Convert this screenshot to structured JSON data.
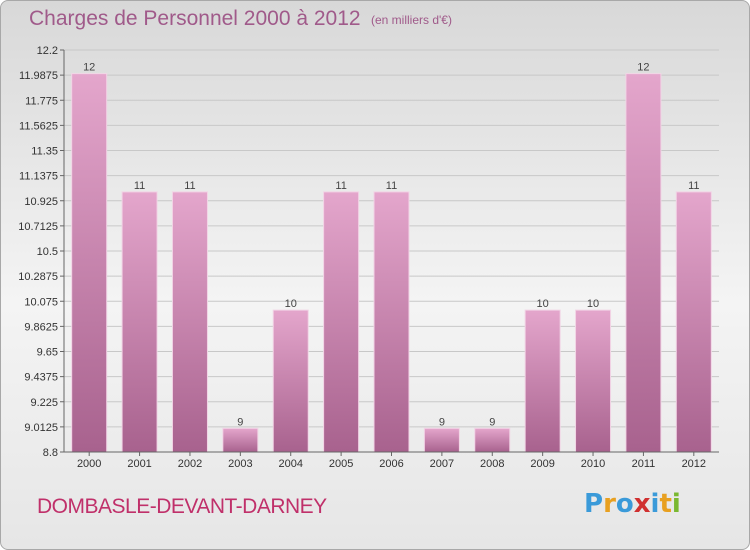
{
  "header": {
    "title": "Charges de Personnel 2000 à 2012",
    "unit": "(en milliers d'€)"
  },
  "footer": {
    "commune": "DOMBASLE-DEVANT-DARNEY",
    "logo_text": "Proxiti",
    "logo_letters": [
      {
        "ch": "P",
        "color": "#3a9ad9"
      },
      {
        "ch": "r",
        "color": "#e8a020"
      },
      {
        "ch": "o",
        "color": "#3a9ad9"
      },
      {
        "ch": "x",
        "color": "#d03030"
      },
      {
        "ch": "i",
        "color": "#3a9ad9"
      },
      {
        "ch": "t",
        "color": "#e8a020"
      },
      {
        "ch": "i",
        "color": "#7ab830"
      }
    ]
  },
  "colors": {
    "bar_light": "#e4a6cc",
    "bar_dark": "#a8628e",
    "title": "#a05a8a",
    "commune": "#c0306a",
    "grid": "#c8c8c8"
  },
  "chart_data": {
    "type": "bar",
    "title": "Charges de Personnel 2000 à 2012",
    "subtitle": "(en milliers d'€)",
    "categories": [
      "2000",
      "2001",
      "2002",
      "2003",
      "2004",
      "2005",
      "2006",
      "2007",
      "2008",
      "2009",
      "2010",
      "2011",
      "2012"
    ],
    "values": [
      12,
      11,
      11,
      9,
      10,
      11,
      11,
      9,
      9,
      10,
      10,
      12,
      11
    ],
    "value_labels": [
      "12",
      "11",
      "11",
      "9",
      "10",
      "11",
      "11",
      "9",
      "9",
      "10",
      "10",
      "12",
      "11"
    ],
    "ylim": [
      8.8,
      12.2
    ],
    "yticks": [
      "12.2",
      "11.9875",
      "11.775",
      "11.5625",
      "11.35",
      "11.1375",
      "10.925",
      "10.7125",
      "10.5",
      "10.2875",
      "10.075",
      "9.8625",
      "9.65",
      "9.4375",
      "9.225",
      "9.0125",
      "8.8"
    ],
    "grid": true,
    "legend": "none"
  }
}
